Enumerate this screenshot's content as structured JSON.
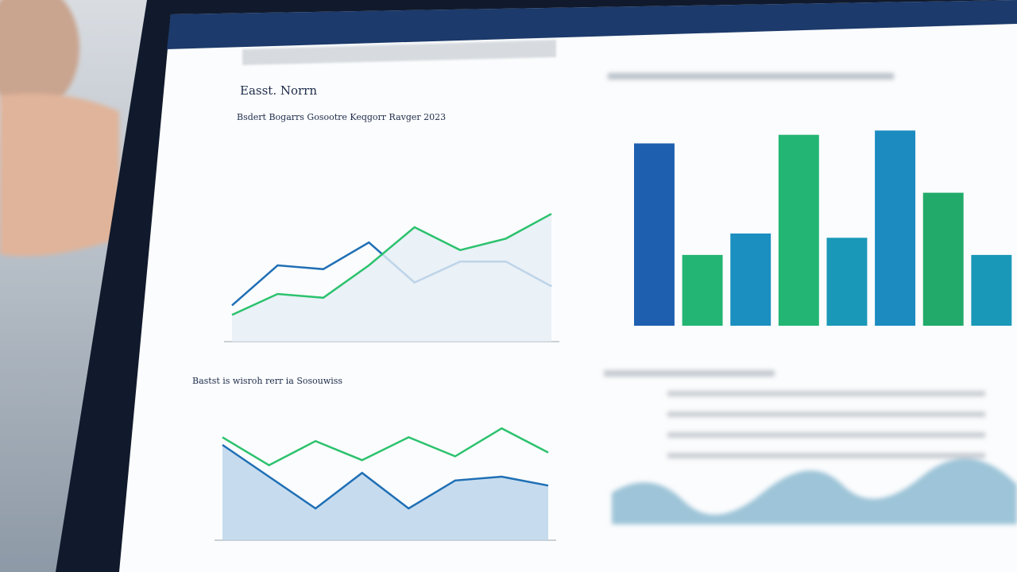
{
  "header": {
    "title": "Easst. Norrn",
    "subtitle": "Bsdert Bogarrs Gosootre Keqgorr Ravger 2023"
  },
  "charts": [
    {
      "type": "line",
      "ylim": [
        0,
        100
      ],
      "fill": true,
      "series": [
        {
          "color": "#1f6fb5",
          "values": [
            19,
            40,
            38,
            52,
            31,
            42,
            42,
            29
          ]
        },
        {
          "color": "#2cc26e",
          "values": [
            14,
            25,
            23,
            40,
            60,
            48,
            54,
            67
          ]
        }
      ]
    },
    {
      "type": "bar",
      "ylim": [
        0,
        100
      ],
      "values": [
        85,
        33,
        43,
        89,
        41,
        91,
        62,
        33
      ],
      "colors": [
        "#1f5fb0",
        "#22b573",
        "#1b8fc0",
        "#22b573",
        "#1a98b8",
        "#1b8bc0",
        "#22aa6a",
        "#1a98b8"
      ]
    },
    {
      "type": "area",
      "title": "Bastst is wisroh rerr ia Sosouwiss",
      "ylim": [
        0,
        100
      ],
      "series": [
        {
          "color": "#2cc26e",
          "values": [
            81,
            59,
            78,
            63,
            81,
            66,
            88,
            69
          ]
        },
        {
          "color": "#1f6fb5",
          "values": [
            75,
            50,
            25,
            53,
            25,
            47,
            50,
            43
          ]
        }
      ]
    }
  ]
}
